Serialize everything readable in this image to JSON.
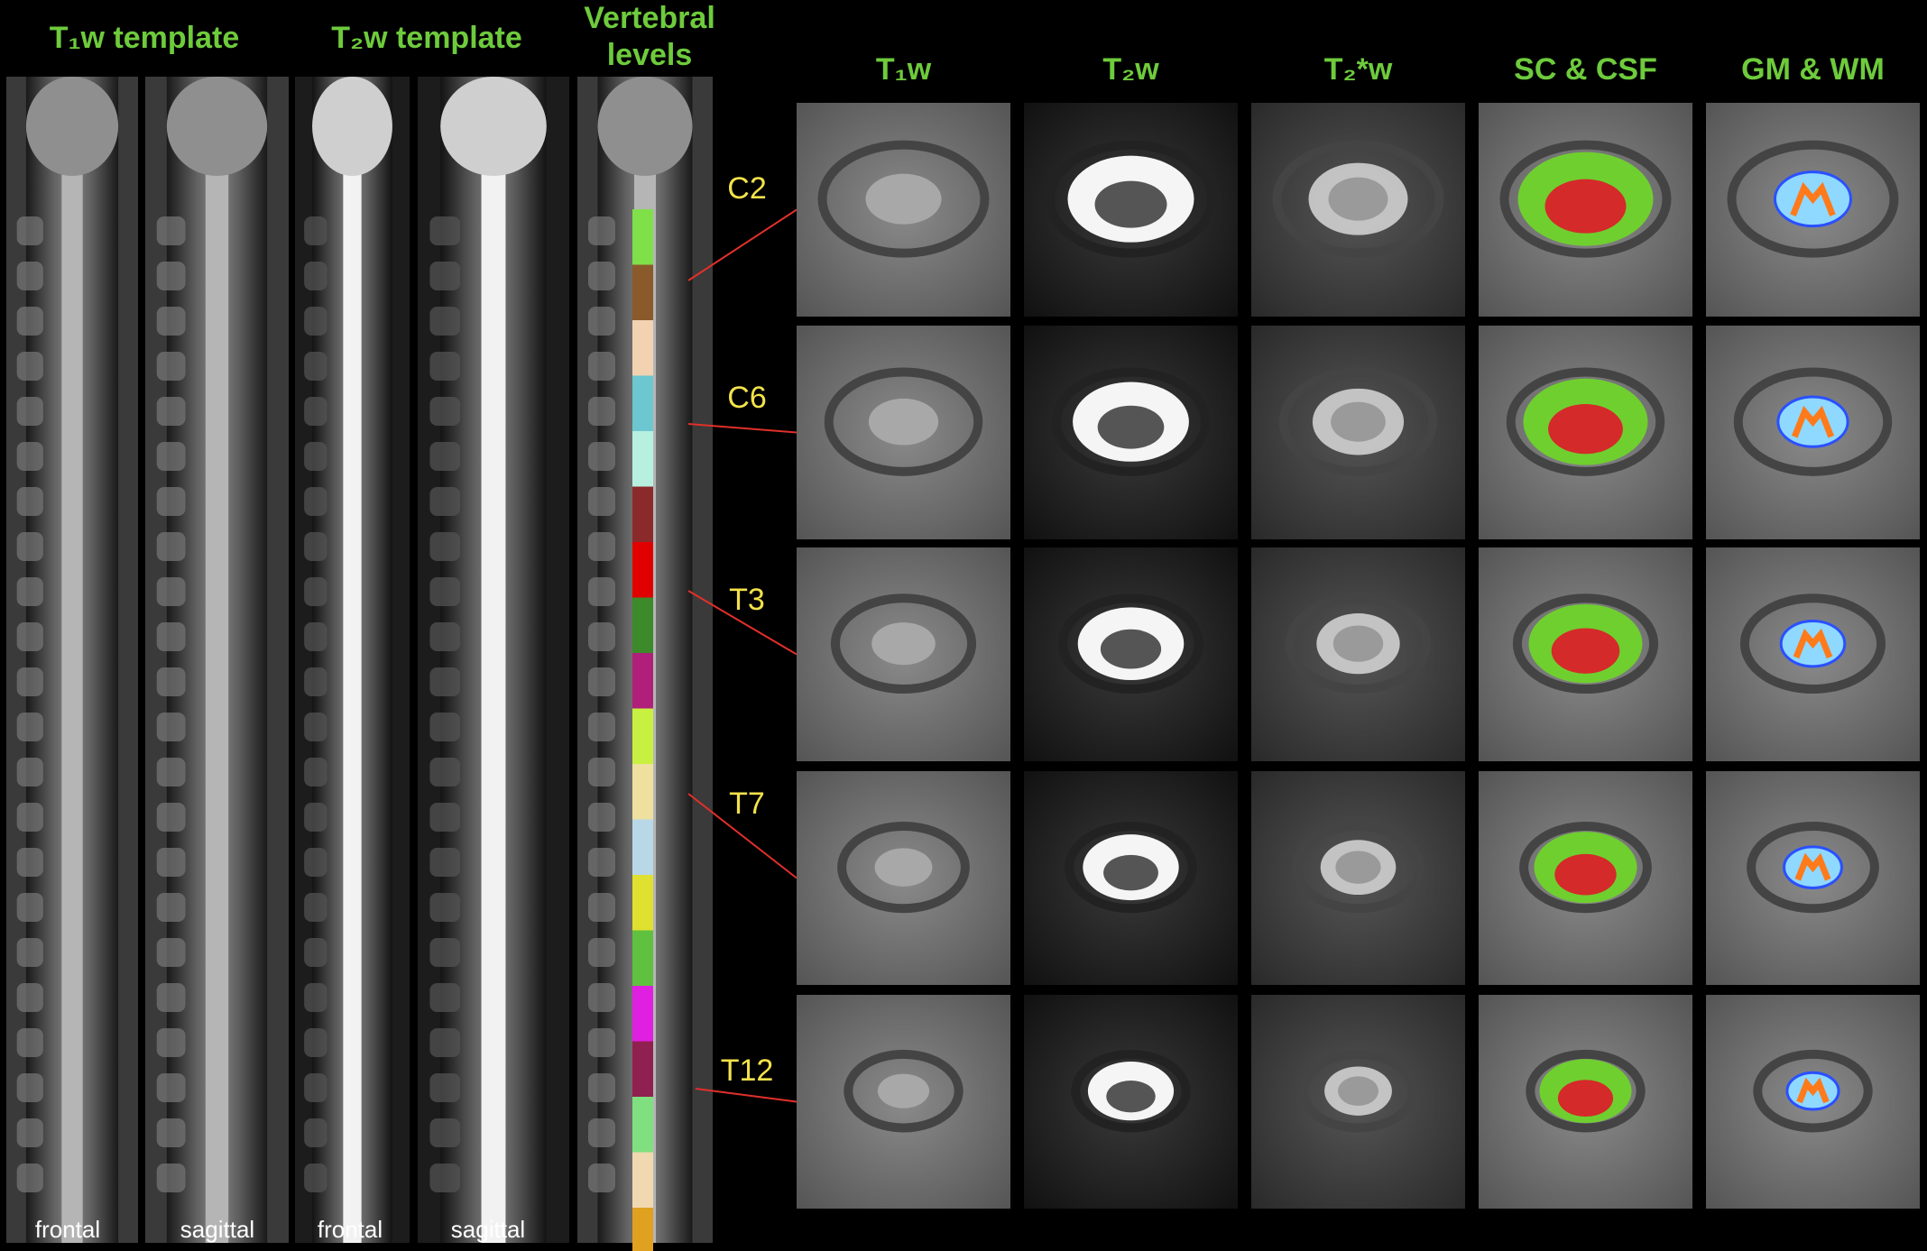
{
  "templates": [
    {
      "title": "T₁w template",
      "views": [
        "frontal",
        "sagittal"
      ]
    },
    {
      "title": "T₂w template",
      "views": [
        "frontal",
        "sagittal"
      ]
    }
  ],
  "vertebral_levels": {
    "title_lines": [
      "Vertebral",
      "levels"
    ]
  },
  "columns": [
    "T₁w",
    "T₂w",
    "T₂*w",
    "SC & CSF",
    "GM & WM"
  ],
  "rows": [
    {
      "level": "C2"
    },
    {
      "level": "C6"
    },
    {
      "level": "T3"
    },
    {
      "level": "T7"
    },
    {
      "level": "T12"
    }
  ]
}
